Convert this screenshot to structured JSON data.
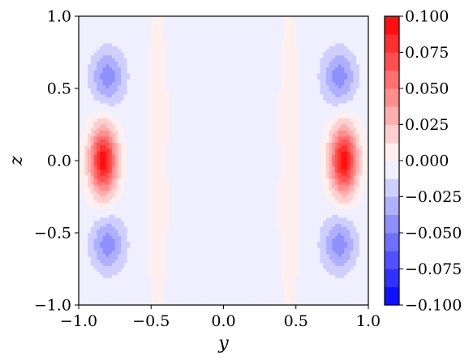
{
  "chart_data": {
    "type": "heatmap",
    "subtype": "filled-contour",
    "xlabel": "y",
    "ylabel": "z",
    "xlim": [
      -1.0,
      1.0
    ],
    "ylim": [
      -1.0,
      1.0
    ],
    "x_ticks": [
      "−1.0",
      "−0.5",
      "0.0",
      "0.5",
      "1.0"
    ],
    "y_ticks": [
      "1.0",
      "0.5",
      "0.0",
      "−0.5",
      "−1.0"
    ],
    "colorbar": {
      "cmap": "bwr",
      "vmin": -0.1,
      "vmax": 0.1,
      "levels": [
        -0.1,
        -0.0875,
        -0.075,
        -0.0625,
        -0.05,
        -0.0375,
        -0.025,
        -0.0125,
        0.0,
        0.0125,
        0.025,
        0.0375,
        0.05,
        0.0625,
        0.075,
        0.0875,
        0.1
      ],
      "tick_labels": [
        "0.100",
        "0.075",
        "0.050",
        "0.025",
        "0.000",
        "−0.025",
        "−0.050",
        "−0.075",
        "−0.100"
      ]
    },
    "extrema": [
      {
        "y": -0.83,
        "z": 0.0,
        "value": 0.1
      },
      {
        "y": 0.83,
        "z": 0.0,
        "value": 0.1
      },
      {
        "y": -0.8,
        "z": 0.58,
        "value": -0.04
      },
      {
        "y": 0.8,
        "z": 0.58,
        "value": -0.04
      },
      {
        "y": -0.8,
        "z": -0.58,
        "value": -0.04
      },
      {
        "y": 0.8,
        "z": -0.58,
        "value": -0.04
      }
    ],
    "grid": false
  }
}
